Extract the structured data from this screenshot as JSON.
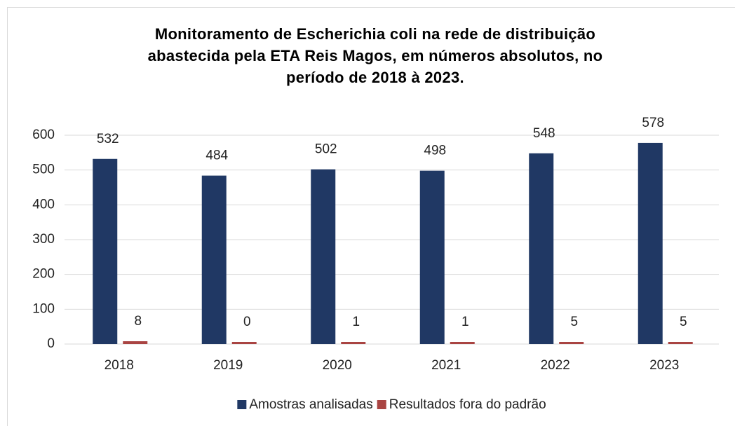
{
  "chart_data": {
    "type": "bar",
    "title": "Monitoramento de Escherichia coli na rede de distribuição abastecida pela ETA Reis Magos, em números absolutos, no período de 2018 à 2023.",
    "categories": [
      "2018",
      "2019",
      "2020",
      "2021",
      "2022",
      "2023"
    ],
    "series": [
      {
        "name": "Amostras analisadas",
        "color": "#203864",
        "values": [
          532,
          484,
          502,
          498,
          548,
          578
        ]
      },
      {
        "name": "Resultados fora do padrão",
        "color": "#a94442",
        "values": [
          8,
          0,
          1,
          1,
          5,
          5
        ]
      }
    ],
    "ylim": [
      0,
      600
    ],
    "yticks": [
      0,
      100,
      200,
      300,
      400,
      500,
      600
    ],
    "grid": true,
    "legend": "bottom"
  }
}
